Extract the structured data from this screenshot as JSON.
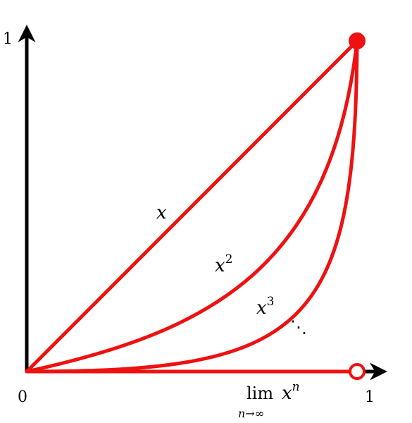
{
  "axes": {
    "y_max": "1",
    "origin": "0",
    "x_max": "1"
  },
  "curves": [
    {
      "base": "x"
    },
    {
      "base": "x",
      "exponent": "2"
    },
    {
      "base": "x",
      "exponent": "3"
    }
  ],
  "ellipsis": "⋱",
  "limit": {
    "operator": "lim",
    "subscript": "n→∞",
    "base": "x",
    "exponent": "n"
  }
}
